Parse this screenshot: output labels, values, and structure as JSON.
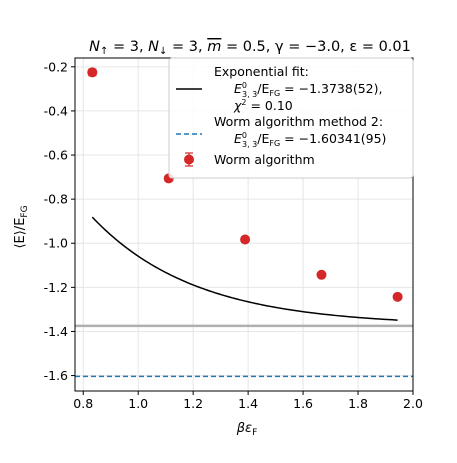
{
  "chart_data": {
    "type": "scatter",
    "title_parts": [
      "N",
      "↑",
      " = 3,  ",
      "N",
      "↓",
      " = 3,  ",
      "m",
      " = 0.5,  γ = −3.0,  ε = 0.01"
    ],
    "xlabel_parts": [
      "βε",
      "F"
    ],
    "ylabel_parts": [
      "⟨E⟩/E",
      "FG"
    ],
    "xlim": [
      0.77,
      2.0
    ],
    "ylim": [
      -1.67,
      -0.16
    ],
    "xticks": [
      0.8,
      1.0,
      1.2,
      1.4,
      1.6,
      1.8,
      2.0
    ],
    "xtick_labels": [
      "0.8",
      "1.0",
      "1.2",
      "1.4",
      "1.6",
      "1.8",
      "2.0"
    ],
    "yticks": [
      -1.6,
      -1.4,
      -1.2,
      -1.0,
      -0.8,
      -0.6,
      -0.4,
      -0.2
    ],
    "ytick_labels": [
      "-1.6",
      "-1.4",
      "-1.2",
      "-1.0",
      "-0.8",
      "-0.6",
      "-0.4",
      "-0.2"
    ],
    "grid": true,
    "legend_position": "top-right",
    "series": [
      {
        "name": "Worm algorithm",
        "kind": "points",
        "color": "#d62728",
        "x": [
          0.833,
          1.111,
          1.389,
          1.667,
          1.944
        ],
        "y": [
          -0.225,
          -0.706,
          -0.983,
          -1.143,
          -1.243
        ],
        "yerr": [
          0.015,
          0.012,
          0.012,
          0.01,
          0.01
        ]
      },
      {
        "name": "Exponential fit",
        "kind": "curve",
        "color": "#000000",
        "model": "a + b*exp(-c*x)",
        "params": {
          "a": -1.3738,
          "b": 4.55,
          "c": 2.67
        },
        "x_range": [
          0.833,
          1.944
        ]
      },
      {
        "name": "Exponential fit band",
        "kind": "hband",
        "color": "#b0b0b0",
        "y": [
          -1.379,
          -1.369
        ]
      },
      {
        "name": "Worm algorithm method 2",
        "kind": "hline",
        "color": "#1f77b4",
        "y": -1.60341
      }
    ],
    "legend": [
      {
        "label_line1": "Exponential fit:",
        "label_line2_parts": [
          "E",
          "0",
          "3, 3",
          "/E",
          "FG",
          " = −1.3738(52),"
        ],
        "label_line3_parts": [
          "χ",
          "2",
          " = 0.10"
        ],
        "style": "solid",
        "color": "#000000"
      },
      {
        "label_line1": "Worm algorithm method 2:",
        "label_line2_parts": [
          "E",
          "0",
          "3, 3",
          "/E",
          "FG",
          " = −1.60341(95)"
        ],
        "style": "dashed",
        "color": "#1f77b4"
      },
      {
        "label_line1": "Worm algorithm",
        "style": "marker",
        "color": "#d62728"
      }
    ]
  }
}
